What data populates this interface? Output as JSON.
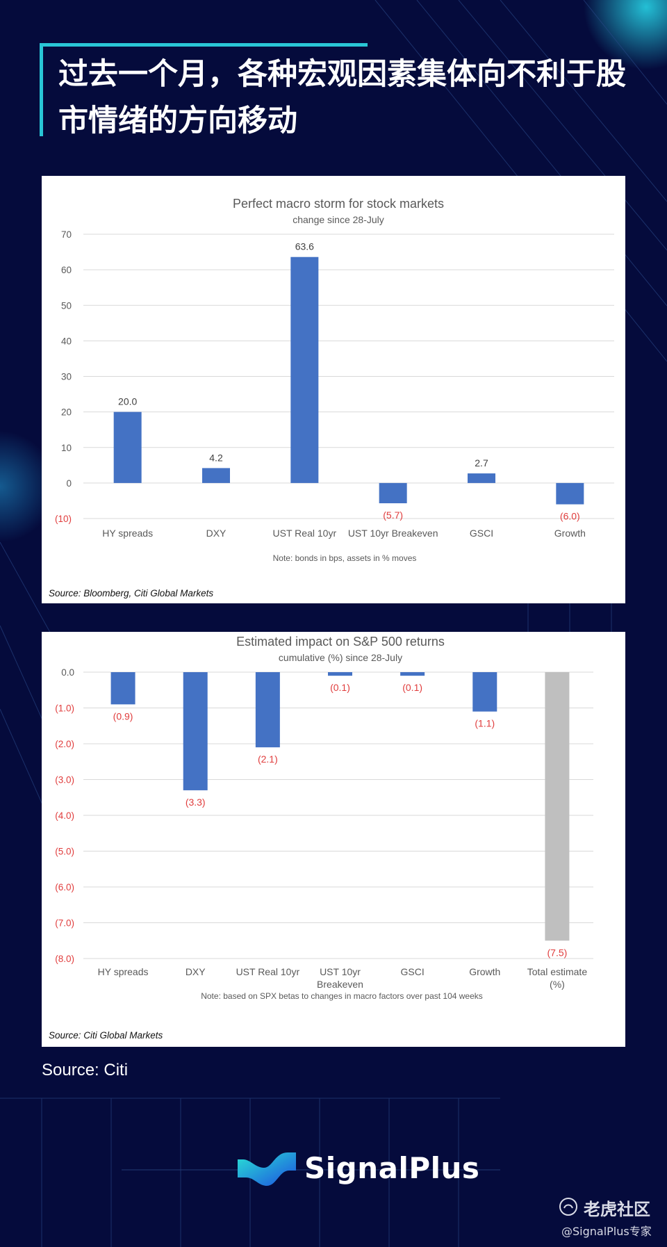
{
  "header": {
    "title": "过去一个月，各种宏观因素集体向不利于股市情绪的方向移动"
  },
  "chart_data": [
    {
      "type": "bar",
      "title": "Perfect macro storm for stock markets",
      "subtitle": "change since 28-July",
      "categories": [
        "HY spreads",
        "DXY",
        "UST Real 10yr",
        "UST 10yr Breakeven",
        "GSCI",
        "Growth"
      ],
      "values": [
        20.0,
        4.2,
        63.6,
        -5.7,
        2.7,
        -6.0
      ],
      "value_labels": [
        "20.0",
        "4.2",
        "63.6",
        "(5.7)",
        "2.7",
        "(6.0)"
      ],
      "yticks": [
        70,
        60,
        50,
        40,
        30,
        20,
        10,
        0,
        -10
      ],
      "ytick_labels": [
        "70",
        "60",
        "50",
        "40",
        "30",
        "20",
        "10",
        "0",
        "(10)"
      ],
      "ylim": [
        -10,
        70
      ],
      "note": "Note: bonds in bps, assets in % moves",
      "source": "Source: Bloomberg, Citi Global Markets",
      "bar_color": "#4472c4",
      "negative_label_color": "#e03c3c"
    },
    {
      "type": "bar",
      "title": "Estimated impact on S&P 500 returns",
      "subtitle": "cumulative (%) since 28-July",
      "categories": [
        [
          "HY spreads"
        ],
        [
          "DXY"
        ],
        [
          "UST Real 10yr"
        ],
        [
          "UST 10yr",
          "Breakeven"
        ],
        [
          "GSCI"
        ],
        [
          "Growth"
        ],
        [
          "Total estimate",
          "(%)"
        ]
      ],
      "values": [
        -0.9,
        -3.3,
        -2.1,
        -0.1,
        -0.1,
        -1.1,
        -7.5
      ],
      "value_labels": [
        "(0.9)",
        "(3.3)",
        "(2.1)",
        "(0.1)",
        "(0.1)",
        "(1.1)",
        "(7.5)"
      ],
      "yticks": [
        0,
        -1,
        -2,
        -3,
        -4,
        -5,
        -6,
        -7,
        -8
      ],
      "ytick_labels": [
        "0.0",
        "(1.0)",
        "(2.0)",
        "(3.0)",
        "(4.0)",
        "(5.0)",
        "(6.0)",
        "(7.0)",
        "(8.0)"
      ],
      "ylim": [
        -8,
        0
      ],
      "note": "Note: based on SPX betas to changes in macro factors over past 104  weeks",
      "source": "Source: Citi Global Markets",
      "bar_color": "#4472c4",
      "total_bar_color": "#bfbfbf",
      "negative_label_color": "#e03c3c"
    }
  ],
  "footer": {
    "source": "Source: Citi",
    "brand": "SignalPlus",
    "watermark": "老虎社区",
    "watermark_handle": "@SignalPlus专家"
  }
}
